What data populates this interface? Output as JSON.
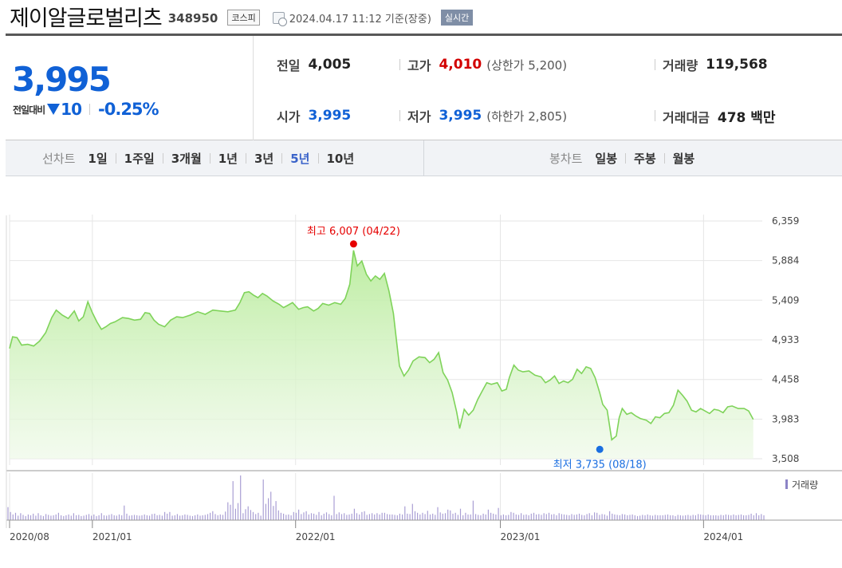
{
  "header": {
    "name": "제이알글로벌리츠",
    "code": "348950",
    "market": "코스피",
    "datetime": "2024.04.17 11:12",
    "basis": "기준(장중)",
    "live": "실시간"
  },
  "summary": {
    "price": "3,995",
    "change_label": "전일대비",
    "change": "10",
    "change_pct": "-0.25%",
    "prev_close": {
      "label": "전일",
      "value": "4,005"
    },
    "high": {
      "label": "고가",
      "value": "4,010",
      "sub": "(상한가 5,200)"
    },
    "volume": {
      "label": "거래량",
      "value": "119,568"
    },
    "open": {
      "label": "시가",
      "value": "3,995"
    },
    "low": {
      "label": "저가",
      "value": "3,995",
      "sub": "(하한가 2,805)"
    },
    "amount": {
      "label": "거래대금",
      "value": "478 백만"
    }
  },
  "line_chart_bar": {
    "label": "선차트",
    "periods": [
      "1일",
      "1주일",
      "3개월",
      "1년",
      "3년",
      "5년",
      "10년"
    ],
    "active": "5년"
  },
  "candle_chart_bar": {
    "label": "봉차트",
    "periods": [
      "일봉",
      "주봉",
      "월봉"
    ]
  },
  "colors": {
    "line": "#7fd35a",
    "area_top": "#b9ec9c",
    "high_marker": "#e60000",
    "low_marker": "#1a6ee0",
    "volume": "#a99ed4"
  },
  "chart_data": {
    "type": "area",
    "y_ticks": [
      "6,359",
      "5,884",
      "5,409",
      "4,933",
      "4,458",
      "3,983",
      "3,508"
    ],
    "ylim": [
      3508,
      6359
    ],
    "x_ticks": [
      "2020/08",
      "2021/01",
      "2022/01",
      "2023/01",
      "2024/01"
    ],
    "x_tick_pos": [
      0.0,
      0.11,
      0.38,
      0.652,
      0.922
    ],
    "high_label": "최고 6,007 (04/22)",
    "low_label": "최저 3,735 (08/18)",
    "high": {
      "t": 0.457,
      "value": 6007
    },
    "low": {
      "t": 0.8,
      "value": 3735
    },
    "volume_legend": "거래량",
    "price": [
      [
        0.0,
        4830
      ],
      [
        0.004,
        4970
      ],
      [
        0.01,
        4960
      ],
      [
        0.016,
        4870
      ],
      [
        0.024,
        4880
      ],
      [
        0.032,
        4860
      ],
      [
        0.04,
        4920
      ],
      [
        0.048,
        5020
      ],
      [
        0.056,
        5200
      ],
      [
        0.062,
        5290
      ],
      [
        0.07,
        5230
      ],
      [
        0.078,
        5190
      ],
      [
        0.086,
        5280
      ],
      [
        0.092,
        5160
      ],
      [
        0.098,
        5210
      ],
      [
        0.104,
        5390
      ],
      [
        0.11,
        5260
      ],
      [
        0.116,
        5150
      ],
      [
        0.122,
        5060
      ],
      [
        0.128,
        5090
      ],
      [
        0.134,
        5130
      ],
      [
        0.14,
        5150
      ],
      [
        0.15,
        5200
      ],
      [
        0.158,
        5190
      ],
      [
        0.166,
        5170
      ],
      [
        0.174,
        5180
      ],
      [
        0.18,
        5260
      ],
      [
        0.186,
        5250
      ],
      [
        0.192,
        5170
      ],
      [
        0.198,
        5120
      ],
      [
        0.206,
        5090
      ],
      [
        0.214,
        5170
      ],
      [
        0.222,
        5210
      ],
      [
        0.23,
        5200
      ],
      [
        0.24,
        5230
      ],
      [
        0.25,
        5270
      ],
      [
        0.26,
        5240
      ],
      [
        0.27,
        5290
      ],
      [
        0.28,
        5280
      ],
      [
        0.29,
        5270
      ],
      [
        0.3,
        5290
      ],
      [
        0.306,
        5380
      ],
      [
        0.312,
        5500
      ],
      [
        0.318,
        5510
      ],
      [
        0.324,
        5470
      ],
      [
        0.33,
        5440
      ],
      [
        0.336,
        5490
      ],
      [
        0.342,
        5460
      ],
      [
        0.35,
        5400
      ],
      [
        0.358,
        5360
      ],
      [
        0.364,
        5320
      ],
      [
        0.37,
        5350
      ],
      [
        0.376,
        5380
      ],
      [
        0.384,
        5300
      ],
      [
        0.39,
        5320
      ],
      [
        0.396,
        5330
      ],
      [
        0.404,
        5280
      ],
      [
        0.41,
        5310
      ],
      [
        0.416,
        5370
      ],
      [
        0.424,
        5350
      ],
      [
        0.432,
        5380
      ],
      [
        0.44,
        5360
      ],
      [
        0.446,
        5430
      ],
      [
        0.452,
        5600
      ],
      [
        0.457,
        6007
      ],
      [
        0.462,
        5820
      ],
      [
        0.468,
        5880
      ],
      [
        0.474,
        5720
      ],
      [
        0.48,
        5640
      ],
      [
        0.486,
        5700
      ],
      [
        0.492,
        5660
      ],
      [
        0.498,
        5730
      ],
      [
        0.504,
        5520
      ],
      [
        0.51,
        5250
      ],
      [
        0.514,
        4930
      ],
      [
        0.518,
        4620
      ],
      [
        0.524,
        4500
      ],
      [
        0.53,
        4570
      ],
      [
        0.536,
        4680
      ],
      [
        0.544,
        4730
      ],
      [
        0.552,
        4720
      ],
      [
        0.558,
        4660
      ],
      [
        0.564,
        4700
      ],
      [
        0.57,
        4780
      ],
      [
        0.576,
        4540
      ],
      [
        0.582,
        4450
      ],
      [
        0.588,
        4300
      ],
      [
        0.594,
        4070
      ],
      [
        0.598,
        3870
      ],
      [
        0.604,
        4100
      ],
      [
        0.61,
        4030
      ],
      [
        0.616,
        4090
      ],
      [
        0.622,
        4220
      ],
      [
        0.628,
        4320
      ],
      [
        0.634,
        4420
      ],
      [
        0.64,
        4400
      ],
      [
        0.648,
        4420
      ],
      [
        0.654,
        4320
      ],
      [
        0.66,
        4340
      ],
      [
        0.664,
        4480
      ],
      [
        0.67,
        4630
      ],
      [
        0.676,
        4570
      ],
      [
        0.682,
        4550
      ],
      [
        0.69,
        4560
      ],
      [
        0.698,
        4510
      ],
      [
        0.706,
        4490
      ],
      [
        0.712,
        4420
      ],
      [
        0.718,
        4450
      ],
      [
        0.724,
        4500
      ],
      [
        0.73,
        4410
      ],
      [
        0.736,
        4440
      ],
      [
        0.742,
        4420
      ],
      [
        0.748,
        4460
      ],
      [
        0.754,
        4580
      ],
      [
        0.76,
        4530
      ],
      [
        0.766,
        4610
      ],
      [
        0.772,
        4590
      ],
      [
        0.778,
        4480
      ],
      [
        0.784,
        4300
      ],
      [
        0.788,
        4160
      ],
      [
        0.794,
        4090
      ],
      [
        0.8,
        3735
      ],
      [
        0.806,
        3780
      ],
      [
        0.81,
        4000
      ],
      [
        0.814,
        4110
      ],
      [
        0.82,
        4040
      ],
      [
        0.826,
        4060
      ],
      [
        0.832,
        4020
      ],
      [
        0.838,
        3990
      ],
      [
        0.846,
        3970
      ],
      [
        0.852,
        3930
      ],
      [
        0.858,
        4010
      ],
      [
        0.864,
        4000
      ],
      [
        0.87,
        4050
      ],
      [
        0.876,
        4060
      ],
      [
        0.882,
        4150
      ],
      [
        0.888,
        4330
      ],
      [
        0.894,
        4270
      ],
      [
        0.9,
        4200
      ],
      [
        0.906,
        4090
      ],
      [
        0.912,
        4070
      ],
      [
        0.918,
        4110
      ],
      [
        0.924,
        4080
      ],
      [
        0.93,
        4050
      ],
      [
        0.936,
        4100
      ],
      [
        0.942,
        4090
      ],
      [
        0.948,
        4060
      ],
      [
        0.954,
        4130
      ],
      [
        0.96,
        4140
      ],
      [
        0.968,
        4110
      ],
      [
        0.976,
        4110
      ],
      [
        0.982,
        4080
      ],
      [
        0.988,
        3980
      ]
    ],
    "volume": [
      32,
      20,
      14,
      18,
      11,
      17,
      13,
      10,
      14,
      12,
      16,
      11,
      17,
      12,
      10,
      15,
      13,
      11,
      12,
      14,
      18,
      12,
      10,
      12,
      14,
      11,
      17,
      12,
      13,
      10,
      11,
      13,
      15,
      11,
      14,
      10,
      12,
      17,
      12,
      11,
      13,
      15,
      12,
      11,
      14,
      12,
      36,
      16,
      11,
      12,
      13,
      12,
      11,
      12,
      14,
      12,
      11,
      15,
      16,
      12,
      13,
      11,
      20,
      16,
      20,
      11,
      12,
      15,
      11,
      12,
      14,
      13,
      11,
      10,
      12,
      14,
      11,
      12,
      13,
      15,
      18,
      22,
      15,
      12,
      14,
      13,
      21,
      44,
      38,
      96,
      28,
      42,
      110,
      17,
      27,
      34,
      25,
      20,
      15,
      18,
      11,
      100,
      40,
      54,
      70,
      35,
      47,
      24,
      18,
      16,
      13,
      14,
      12,
      20,
      18,
      26,
      15,
      19,
      22,
      14,
      17,
      16,
      13,
      20,
      12,
      16,
      19,
      15,
      12,
      60,
      15,
      19,
      15,
      17,
      13,
      14,
      16,
      28,
      17,
      14,
      20,
      22,
      13,
      15,
      17,
      14,
      17,
      14,
      18,
      18,
      15,
      14,
      14,
      13,
      12,
      16,
      14,
      34,
      16,
      15,
      40,
      22,
      18,
      14,
      18,
      15,
      23,
      14,
      16,
      13,
      32,
      19,
      16,
      17,
      26,
      24,
      16,
      18,
      13,
      28,
      12,
      18,
      14,
      14,
      48,
      15,
      13,
      12,
      16,
      14,
      26,
      18,
      16,
      14,
      30,
      12,
      14,
      12,
      13,
      20,
      18,
      14,
      13,
      17,
      13,
      14,
      12,
      16,
      18,
      14,
      15,
      13,
      17,
      15,
      18,
      14,
      15,
      12,
      17,
      15,
      14,
      13,
      12,
      15,
      13,
      14,
      16,
      13,
      12,
      15,
      17,
      12,
      19,
      18,
      13,
      15,
      14,
      11,
      22,
      16,
      14,
      13,
      12,
      15,
      14,
      12,
      13,
      14,
      12,
      10,
      11,
      13,
      12,
      14,
      12,
      11,
      13,
      12,
      12,
      12,
      13,
      14,
      12,
      12,
      10,
      13,
      12,
      11,
      12,
      13,
      11,
      13,
      12,
      15,
      14,
      13,
      12,
      14,
      12,
      12,
      12,
      11,
      13,
      12,
      14,
      13,
      12,
      14,
      12,
      13,
      14,
      12,
      12,
      13,
      16,
      12,
      17,
      12,
      15,
      12
    ]
  }
}
